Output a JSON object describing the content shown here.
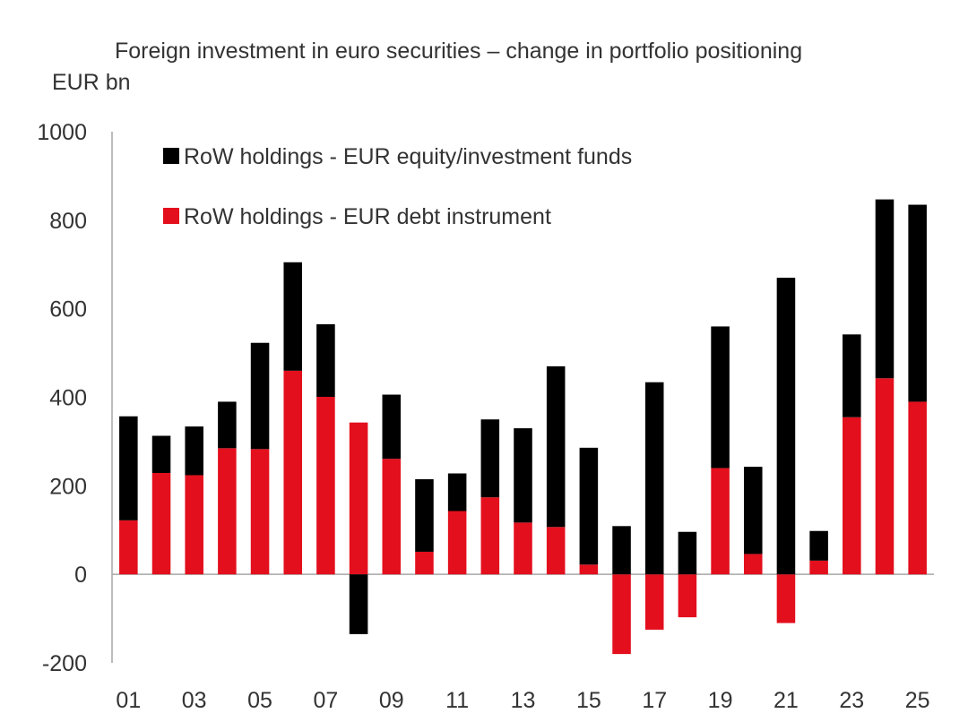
{
  "chart_data": {
    "type": "bar",
    "stacked": true,
    "title": "Foreign investment in euro securities – change in portfolio positioning",
    "ylabel": "EUR bn",
    "xlabel": "",
    "ylim": [
      -200,
      1000
    ],
    "yticks": [
      1000,
      800,
      600,
      400,
      200,
      0,
      -200
    ],
    "categories": [
      "01",
      "02",
      "03",
      "04",
      "05",
      "06",
      "07",
      "08",
      "09",
      "10",
      "11",
      "12",
      "13",
      "14",
      "15",
      "16",
      "17",
      "18",
      "19",
      "20",
      "21",
      "22",
      "23",
      "24",
      "25"
    ],
    "xtick_labels": [
      "01",
      "03",
      "05",
      "07",
      "09",
      "11",
      "13",
      "15",
      "17",
      "19",
      "21",
      "23",
      "25"
    ],
    "series": [
      {
        "name": "RoW holdings - EUR debt instrument",
        "color": "#e30f1d",
        "values": [
          122,
          229,
          224,
          285,
          283,
          460,
          401,
          343,
          261,
          51,
          143,
          174,
          117,
          107,
          22,
          -180,
          -125,
          -97,
          240,
          46,
          -110,
          31,
          355,
          443,
          390
        ]
      },
      {
        "name": "RoW holdings - EUR equity/investment funds",
        "color": "#000000",
        "values": [
          235,
          84,
          110,
          105,
          240,
          245,
          164,
          -135,
          145,
          164,
          85,
          176,
          213,
          363,
          264,
          109,
          434,
          96,
          320,
          197,
          670,
          67,
          187,
          404,
          445
        ]
      }
    ],
    "legend_order": [
      1,
      0
    ],
    "legend_position": "top-left",
    "grid": false
  }
}
